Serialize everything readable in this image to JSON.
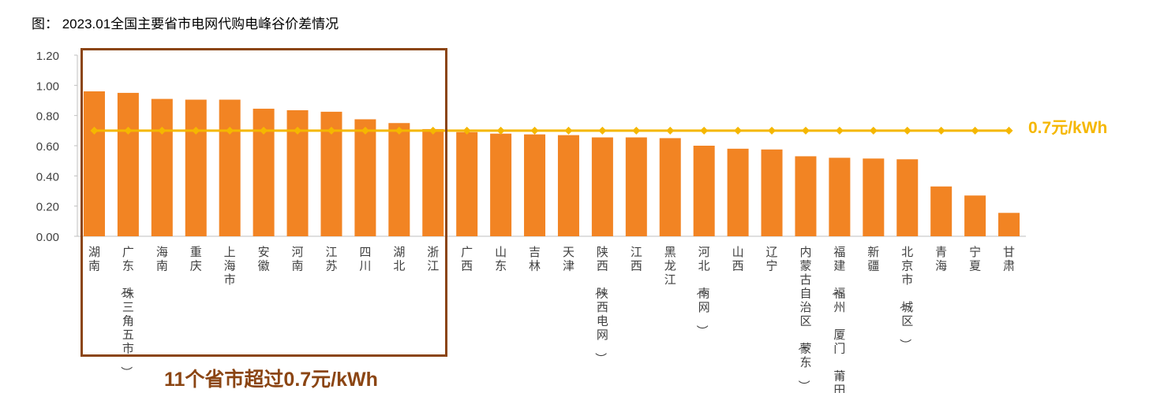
{
  "title": "图： 2023.01全国主要省市电网代购电峰谷价差情况",
  "reference_label": "0.7元/kWh",
  "highlight_label": "11个省市超过0.7元/kWh",
  "colors": {
    "bar": "#F28423",
    "reference_line": "#F5B700",
    "highlight_box": "#8B4513"
  },
  "chart_data": {
    "type": "bar",
    "title": "",
    "xlabel": "",
    "ylabel": "",
    "ylim": [
      0,
      1.2
    ],
    "yticks": [
      "0.00",
      "0.20",
      "0.40",
      "0.60",
      "0.80",
      "1.00",
      "1.20"
    ],
    "grid": false,
    "categories": [
      "湖南",
      "广东（珠三角五市）",
      "海南",
      "重庆",
      "上海市",
      "安徽",
      "河南",
      "江苏",
      "四川",
      "湖北",
      "浙江",
      "广西",
      "山东",
      "吉林",
      "天津",
      "陕西（陕西电网）",
      "江西",
      "黑龙江",
      "河北（南网）",
      "山西",
      "辽宁",
      "内蒙古自治区（蒙东）",
      "福建（福州　厦门　莆田",
      "新疆",
      "北京市（城区）",
      "青海",
      "宁夏",
      "甘肃"
    ],
    "series": [
      {
        "values": [
          0.96,
          0.95,
          0.91,
          0.905,
          0.905,
          0.845,
          0.835,
          0.825,
          0.775,
          0.75,
          0.71,
          0.69,
          0.68,
          0.675,
          0.67,
          0.655,
          0.655,
          0.65,
          0.6,
          0.58,
          0.575,
          0.53,
          0.52,
          0.515,
          0.51,
          0.33,
          0.27,
          0.155
        ]
      },
      {
        "type": "line",
        "values": [
          0.7,
          0.7,
          0.7,
          0.7,
          0.7,
          0.7,
          0.7,
          0.7,
          0.7,
          0.7,
          0.7,
          0.7,
          0.7,
          0.7,
          0.7,
          0.7,
          0.7,
          0.7,
          0.7,
          0.7,
          0.7,
          0.7,
          0.7,
          0.7,
          0.7,
          0.7,
          0.7,
          0.7
        ]
      }
    ],
    "legend": "none"
  }
}
